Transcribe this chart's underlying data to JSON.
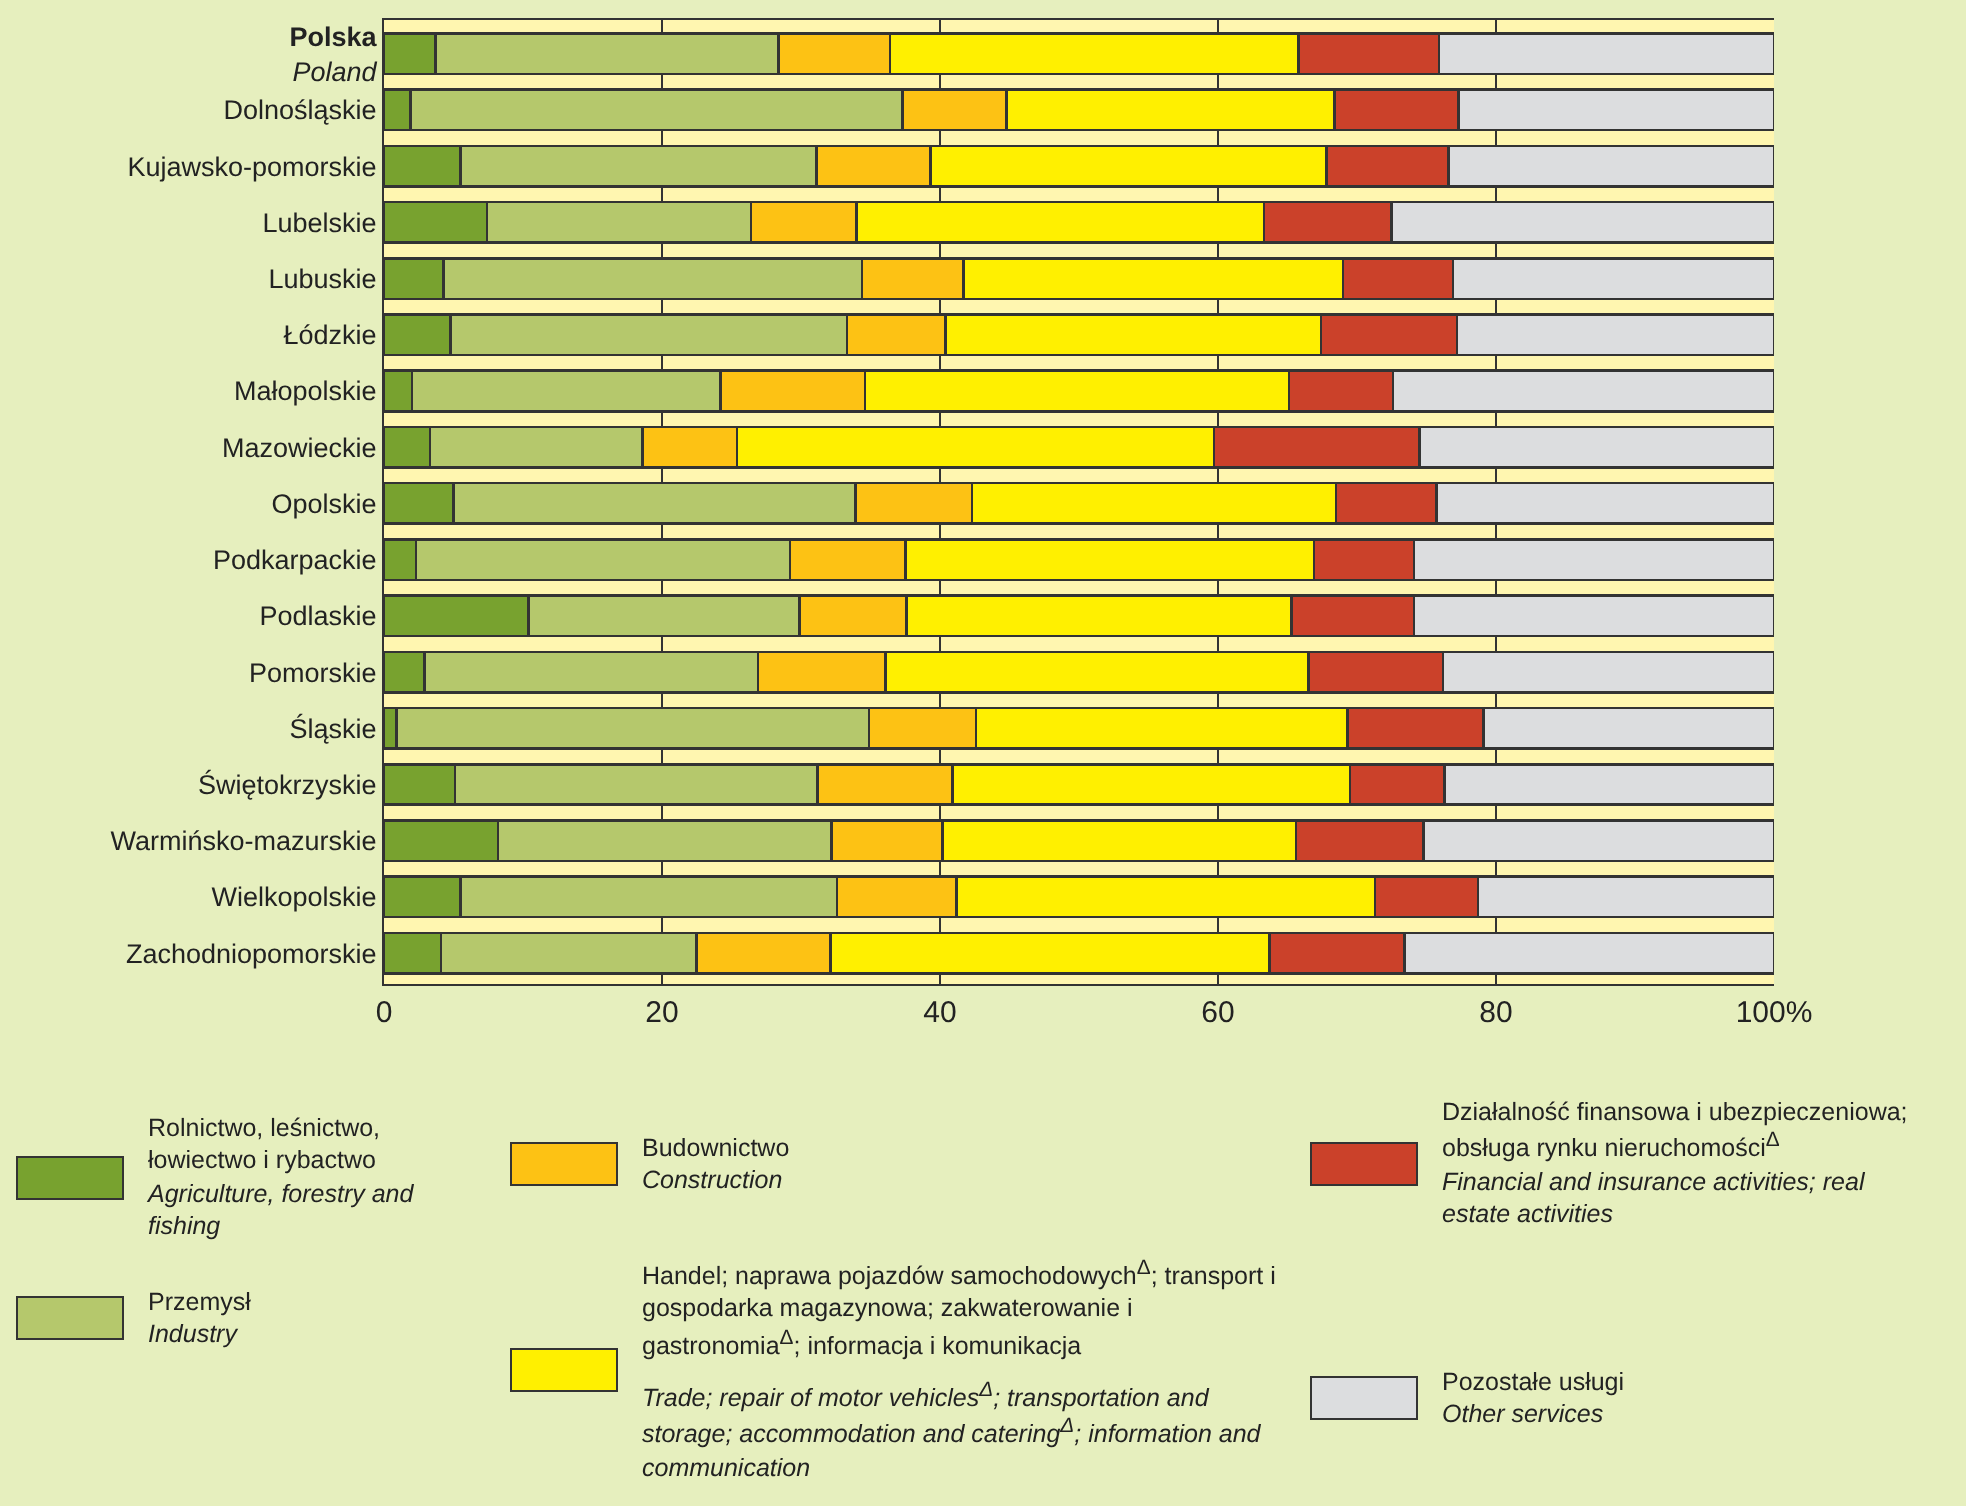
{
  "chart_data": {
    "type": "bar",
    "orientation": "horizontal",
    "stacked": true,
    "categories": [
      "Polska\nPoland",
      "Dolnośląskie",
      "Kujawsko-pomorskie",
      "Lubelskie",
      "Lubuskie",
      "Łódzkie",
      "Małopolskie",
      "Mazowieckie",
      "Opolskie",
      "Podkarpackie",
      "Podlaskie",
      "Pomorskie",
      "Śląskie",
      "Świętokrzyskie",
      "Warmińsko-mazurskie",
      "Wielkopolskie",
      "Zachodniopomorskie"
    ],
    "series": [
      {
        "name": "Rolnictwo, leśnictwo, łowiectwo i rybactwo\nAgriculture, forestry and fishing",
        "color": "#78a22f",
        "values": [
          3.7,
          1.9,
          5.5,
          7.4,
          4.3,
          4.8,
          2.0,
          3.3,
          5.0,
          2.3,
          10.4,
          2.9,
          0.9,
          5.1,
          8.2,
          5.5,
          4.1
        ]
      },
      {
        "name": "Przemysł\nIndustry",
        "color": "#b5c86c",
        "values": [
          24.7,
          35.4,
          25.6,
          19.0,
          30.1,
          28.5,
          22.2,
          15.3,
          28.9,
          26.9,
          19.5,
          24.0,
          34.0,
          26.1,
          24.0,
          27.1,
          18.4
        ]
      },
      {
        "name": "Budownictwo\nConstruction",
        "color": "#fdc214",
        "values": [
          8.0,
          7.5,
          8.2,
          7.6,
          7.3,
          7.1,
          10.4,
          6.8,
          8.4,
          8.3,
          7.7,
          9.2,
          7.7,
          9.7,
          8.0,
          8.6,
          9.6
        ]
      },
      {
        "name": "Handel; naprawa pojazdów samochodowych$^{Δ}$; transport i gospodarka magazynowa; zakwaterowanie i gastronomia$^{Δ}$; informacja i komunikacja\nTrade; repair of motor vehicles$^{Δ}$; transportation and storage; accommodation and catering$^{Δ}$; information and communication",
        "color": "#fff000",
        "values": [
          29.4,
          23.6,
          28.5,
          29.3,
          27.3,
          27.0,
          30.5,
          34.3,
          26.2,
          29.4,
          27.7,
          30.4,
          26.7,
          28.6,
          25.4,
          30.1,
          31.6
        ]
      },
      {
        "name": "Działalność finansowa i ubezpieczeniowa; obsługa rynku nieruchomości$^{Δ}$\nFinancial and insurance activities; real estate activities",
        "color": "#cb412a",
        "values": [
          10.1,
          8.9,
          8.8,
          9.2,
          7.9,
          9.8,
          7.5,
          14.8,
          7.2,
          7.2,
          8.8,
          9.7,
          9.8,
          6.8,
          9.2,
          7.4,
          9.7
        ]
      },
      {
        "name": "Pozostałe usługi\nOther services",
        "color": "#dcdddf",
        "values": [
          24.1,
          22.7,
          23.4,
          27.5,
          23.1,
          22.8,
          27.4,
          25.5,
          24.3,
          25.9,
          25.9,
          23.8,
          20.9,
          23.7,
          25.2,
          21.3,
          26.6
        ]
      }
    ],
    "xlim": [
      0,
      100
    ],
    "xticks": [
      0,
      20,
      40,
      60,
      {
        "value": 100,
        "label": "100%"
      },
      80
    ],
    "grid": "x",
    "legend": "bottom"
  }
}
